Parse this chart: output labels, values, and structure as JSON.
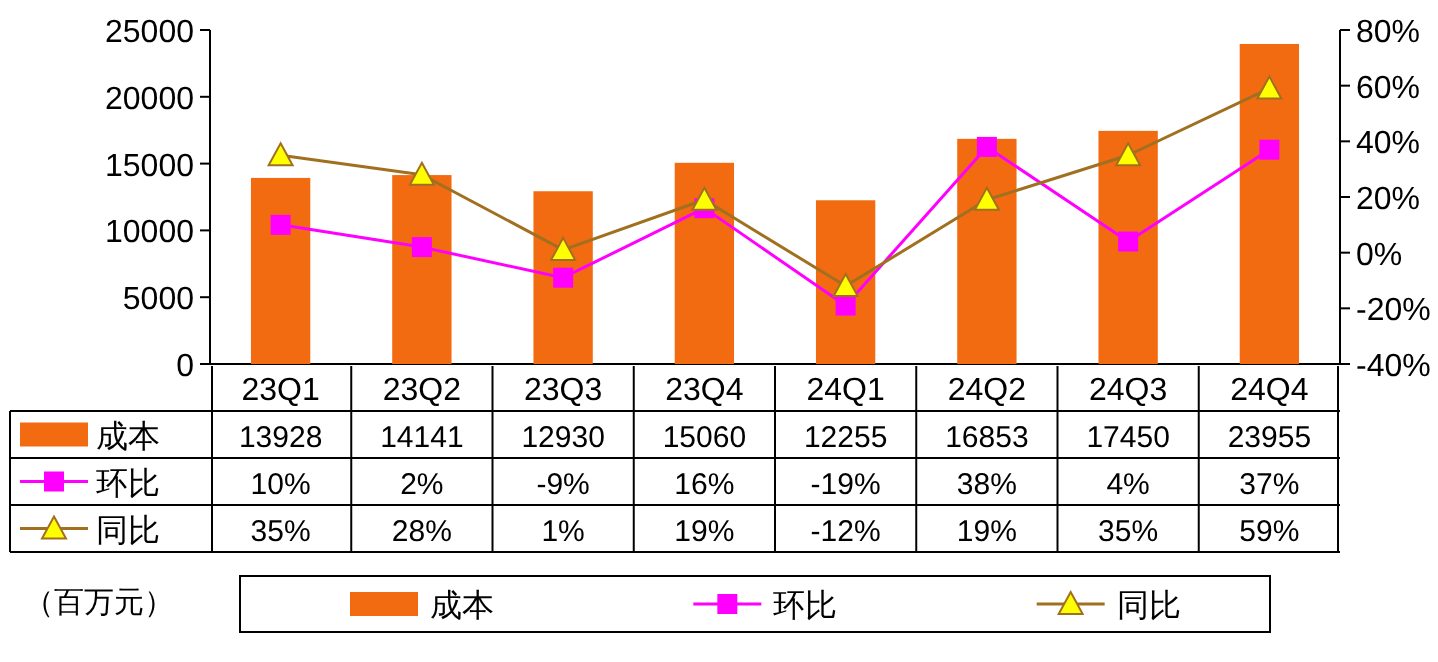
{
  "chart_data": {
    "type": "bar",
    "categories": [
      "23Q1",
      "23Q2",
      "23Q3",
      "23Q4",
      "24Q1",
      "24Q2",
      "24Q3",
      "24Q4"
    ],
    "series": [
      {
        "name": "成本",
        "color": "#f26b10",
        "values": [
          13928,
          14141,
          12930,
          15060,
          12255,
          16853,
          17450,
          23955
        ],
        "value_labels": [
          "13928",
          "14141",
          "12930",
          "15060",
          "12255",
          "16853",
          "17450",
          "23955"
        ]
      },
      {
        "name": "环比",
        "type": "line",
        "axis": "y2",
        "color": "#ff00ff",
        "marker": "square",
        "values": [
          10,
          2,
          -9,
          16,
          -19,
          38,
          4,
          37
        ],
        "value_labels": [
          "10%",
          "2%",
          "-9%",
          "16%",
          "-19%",
          "38%",
          "4%",
          "37%"
        ]
      },
      {
        "name": "同比",
        "type": "line",
        "axis": "y2",
        "color": "#a07020",
        "marker": "triangle",
        "values": [
          35,
          28,
          1,
          19,
          -12,
          19,
          35,
          59
        ],
        "value_labels": [
          "35%",
          "28%",
          "1%",
          "19%",
          "-12%",
          "19%",
          "35%",
          "59%"
        ]
      }
    ],
    "ylim": [
      0,
      25000
    ],
    "yticks": [
      0,
      5000,
      10000,
      15000,
      20000,
      25000
    ],
    "y2lim": [
      -40,
      80
    ],
    "y2ticks": [
      {
        "value": -40,
        "label": "-40%"
      },
      {
        "value": -20,
        "label": "-20%"
      },
      {
        "value": 0,
        "label": "0%"
      },
      {
        "value": 20,
        "label": "20%"
      },
      {
        "value": 40,
        "label": "40%"
      },
      {
        "value": 60,
        "label": "60%"
      },
      {
        "value": 80,
        "label": "80%"
      }
    ],
    "grid": false,
    "legend": "bottom",
    "annotations": [
      "（百万元）"
    ]
  }
}
